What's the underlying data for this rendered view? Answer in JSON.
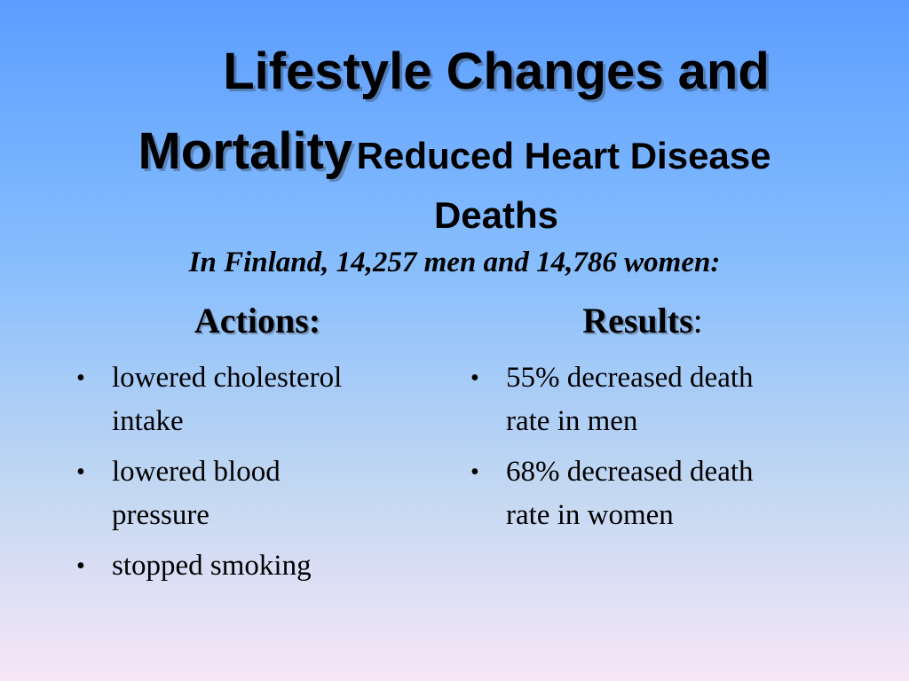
{
  "slide": {
    "title_part1": "Lifestyle Changes and",
    "title_part2": "Mortality",
    "title_part3": "Reduced Heart Disease",
    "title_part4": "Deaths",
    "subtitle": "In Finland, 14,257 men and 14,786 women:",
    "actions": {
      "heading": "Actions:",
      "items": [
        {
          "line1": "lowered cholesterol",
          "line2": "intake"
        },
        {
          "line1": "lowered blood",
          "line2": "pressure"
        },
        {
          "line1": "stopped smoking",
          "line2": ""
        }
      ]
    },
    "results": {
      "heading": "Results",
      "heading_suffix": ":",
      "items": [
        {
          "line1": "55% decreased death",
          "line2": "rate in men"
        },
        {
          "line1": "68% decreased death",
          "line2": "rate in women"
        }
      ]
    },
    "bullet_glyph": "•",
    "colors": {
      "gradient_top": "#5b9eff",
      "gradient_bottom": "#f7e6f7",
      "text": "#000000"
    }
  }
}
